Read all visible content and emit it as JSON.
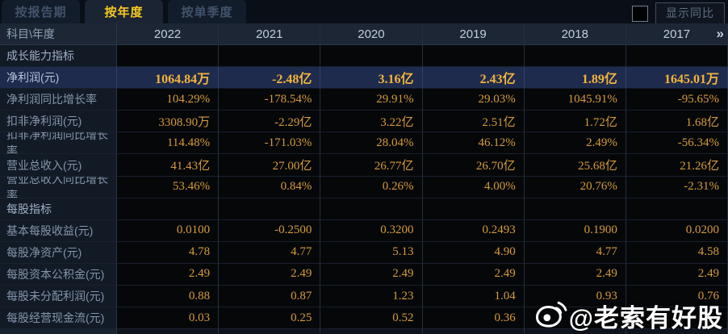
{
  "tabs": [
    {
      "label": "按报告期",
      "active": false
    },
    {
      "label": "按年度",
      "active": true
    },
    {
      "label": "按单季度",
      "active": false
    }
  ],
  "controls": {
    "show_yoy_label": "显示同比",
    "checkbox_checked": false
  },
  "table": {
    "corner_header": "科目\\年度",
    "year_columns": [
      "2022",
      "2021",
      "2020",
      "2019",
      "2018",
      "2017"
    ],
    "more_icon": "»",
    "rows": [
      {
        "type": "section",
        "label": "成长能力指标",
        "values": [
          "",
          "",
          "",
          "",
          "",
          ""
        ]
      },
      {
        "type": "highlight",
        "label": "净利润(元)",
        "values": [
          "1064.84万",
          "-2.48亿",
          "3.16亿",
          "2.43亿",
          "1.89亿",
          "1645.01万"
        ]
      },
      {
        "type": "data",
        "label": "净利润同比增长率",
        "values": [
          "104.29%",
          "-178.54%",
          "29.91%",
          "29.03%",
          "1045.91%",
          "-95.65%"
        ]
      },
      {
        "type": "data",
        "label": "扣非净利润(元)",
        "values": [
          "3308.90万",
          "-2.29亿",
          "3.22亿",
          "2.51亿",
          "1.72亿",
          "1.68亿"
        ]
      },
      {
        "type": "data",
        "label": "扣非净利润同比增长率",
        "values": [
          "114.48%",
          "-171.03%",
          "28.04%",
          "46.12%",
          "2.49%",
          "-56.34%"
        ]
      },
      {
        "type": "data",
        "label": "营业总收入(元)",
        "values": [
          "41.43亿",
          "27.00亿",
          "26.77亿",
          "26.70亿",
          "25.68亿",
          "21.26亿"
        ]
      },
      {
        "type": "data",
        "label": "营业总收入同比增长率",
        "values": [
          "53.46%",
          "0.84%",
          "0.26%",
          "4.00%",
          "20.76%",
          "-2.31%"
        ]
      },
      {
        "type": "section",
        "label": "每股指标",
        "values": [
          "",
          "",
          "",
          "",
          "",
          ""
        ]
      },
      {
        "type": "data",
        "label": "基本每股收益(元)",
        "values": [
          "0.0100",
          "-0.2500",
          "0.3200",
          "0.2493",
          "0.1900",
          "0.0200"
        ]
      },
      {
        "type": "data",
        "label": "每股净资产(元)",
        "values": [
          "4.78",
          "4.77",
          "5.13",
          "4.90",
          "4.77",
          "4.58"
        ]
      },
      {
        "type": "data",
        "label": "每股资本公积金(元)",
        "values": [
          "2.49",
          "2.49",
          "2.49",
          "2.49",
          "2.49",
          "2.49"
        ]
      },
      {
        "type": "data",
        "label": "每股未分配利润(元)",
        "values": [
          "0.88",
          "0.87",
          "1.23",
          "1.04",
          "0.93",
          "0.76"
        ]
      },
      {
        "type": "data",
        "label": "每股经营现金流(元)",
        "values": [
          "0.03",
          "0.25",
          "0.52",
          "0.36",
          "",
          ""
        ]
      }
    ]
  },
  "watermark": {
    "text": "@老索有好股",
    "icon": "weibo-logo"
  },
  "colors": {
    "accent_gold": "#f8c822",
    "value_orange": "#d89b3a",
    "highlight_row_bg": "#1e2b4d",
    "header_bg": "#1c2634",
    "label_cell_bg": "#121a26",
    "data_cell_bg": "#050709"
  }
}
